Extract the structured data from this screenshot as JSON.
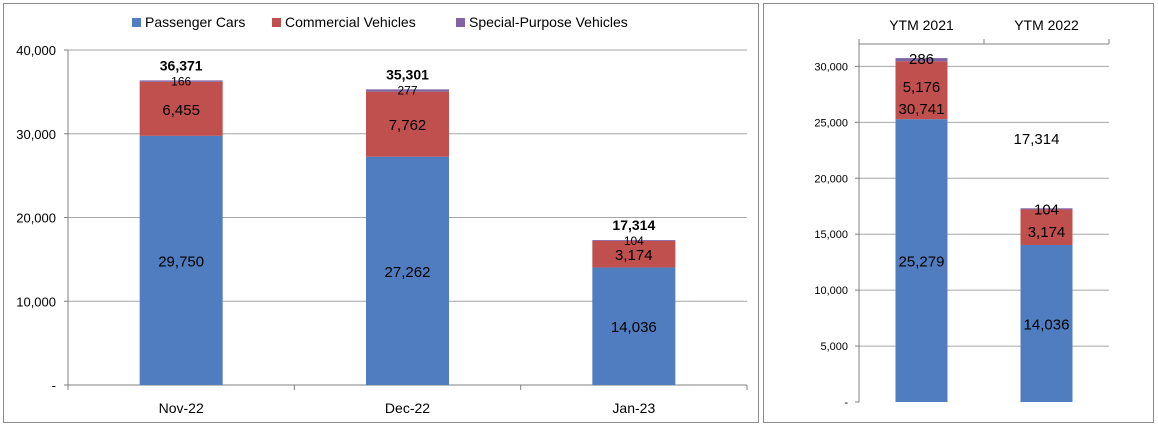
{
  "colors": {
    "passenger": "#4f7dbf",
    "commercial": "#c0504d",
    "special": "#8064a2",
    "grid": "#a6a6a6",
    "axis": "#808080"
  },
  "chart_data": [
    {
      "type": "bar",
      "stacked": true,
      "categories": [
        "Nov-22",
        "Dec-22",
        "Jan-23"
      ],
      "series": [
        {
          "name": "Passenger Cars",
          "values": [
            29750,
            27262,
            14036
          ],
          "labels": [
            "29,750",
            "27,262",
            "14,036"
          ]
        },
        {
          "name": "Commercial Vehicles",
          "values": [
            6455,
            7762,
            3174
          ],
          "labels": [
            "6,455",
            "7,762",
            "3,174"
          ]
        },
        {
          "name": "Special-Purpose Vehicles",
          "values": [
            166,
            277,
            104
          ],
          "labels": [
            "166",
            "277",
            "104"
          ]
        }
      ],
      "totals": [
        "36,371",
        "35,301",
        "17,314"
      ],
      "ylim": [
        0,
        40000
      ],
      "yticks": [
        0,
        10000,
        20000,
        30000,
        40000
      ],
      "ytick_labels": [
        "-",
        "10,000",
        "20,000",
        "30,000",
        "40,000"
      ],
      "grid": true,
      "legend": "top"
    },
    {
      "type": "bar",
      "stacked": true,
      "categories": [
        "YTM 2021",
        "YTM 2022"
      ],
      "series": [
        {
          "name": "Passenger Cars",
          "values": [
            25279,
            14036
          ],
          "labels": [
            "25,279",
            "14,036"
          ]
        },
        {
          "name": "Commercial Vehicles",
          "values": [
            5176,
            3174
          ],
          "labels": [
            "5,176",
            "3,174"
          ]
        },
        {
          "name": "Special-Purpose Vehicles",
          "values": [
            286,
            104
          ],
          "labels": [
            "286",
            "104"
          ]
        }
      ],
      "totals": [
        "30,741",
        "17,314"
      ],
      "ylim": [
        0,
        32000
      ],
      "yticks": [
        0,
        5000,
        10000,
        15000,
        20000,
        25000,
        30000
      ],
      "ytick_labels": [
        "-",
        "5,000",
        "10,000",
        "15,000",
        "20,000",
        "25,000",
        "30,000"
      ],
      "grid": true,
      "category_position": "top"
    }
  ]
}
